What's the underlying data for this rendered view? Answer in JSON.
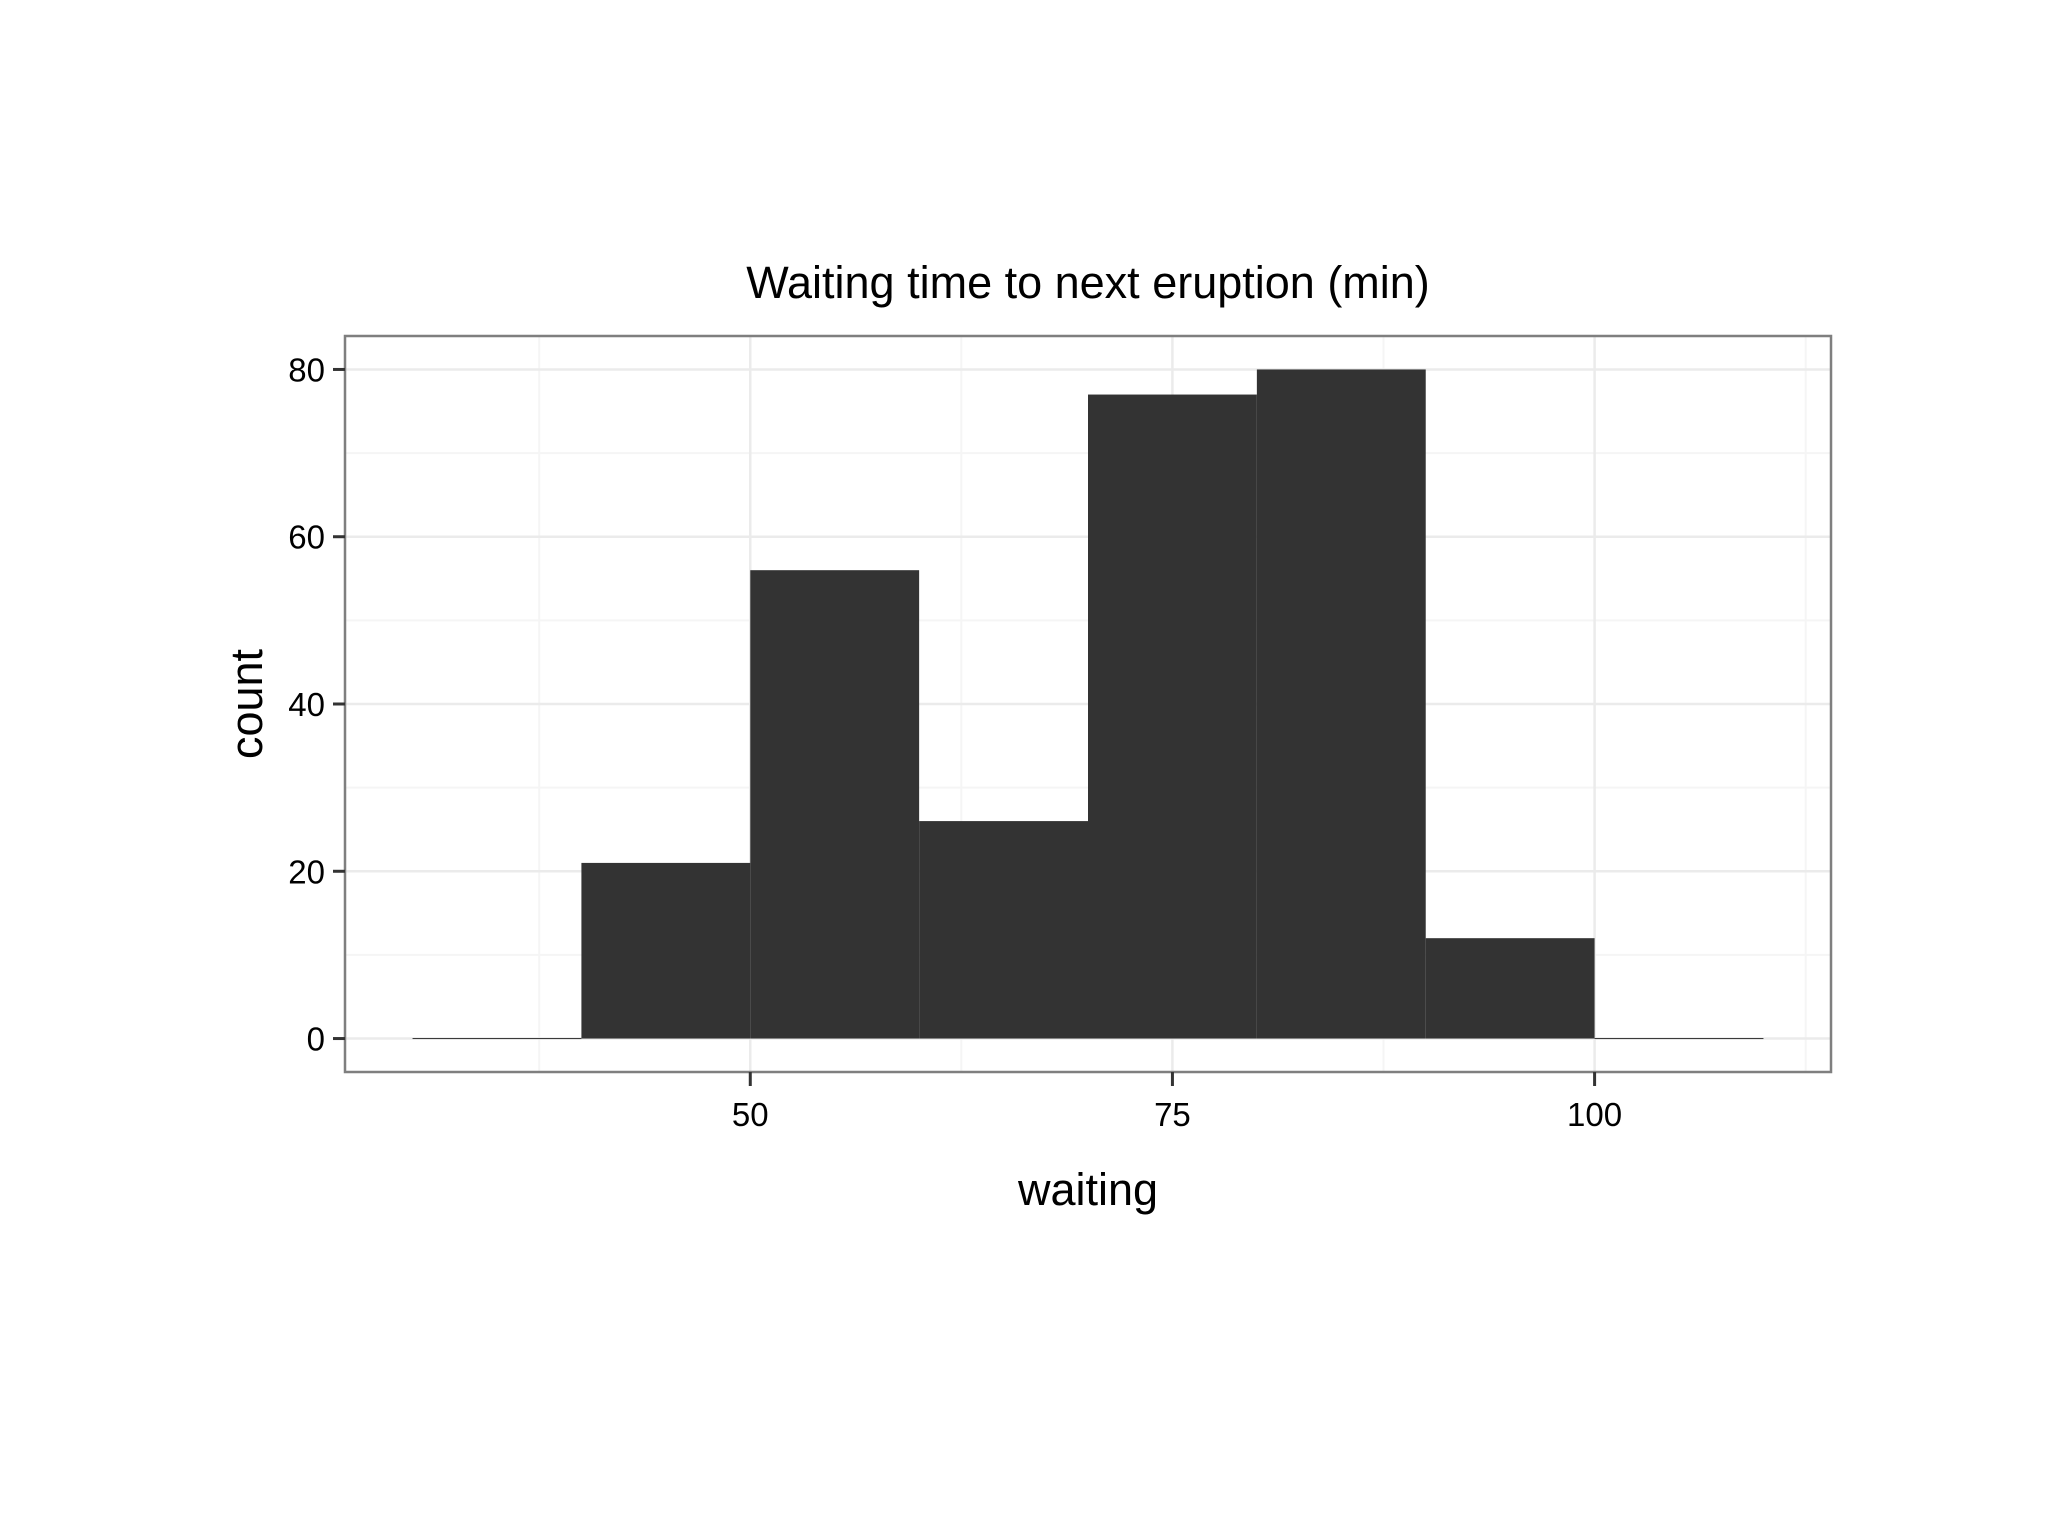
{
  "chart_data": {
    "type": "bar",
    "title": "Waiting time to next eruption (min)",
    "xlabel": "waiting",
    "ylabel": "count",
    "bins": [
      {
        "start": 30,
        "end": 40,
        "count": 0
      },
      {
        "start": 40,
        "end": 50,
        "count": 21
      },
      {
        "start": 50,
        "end": 60,
        "count": 56
      },
      {
        "start": 60,
        "end": 70,
        "count": 26
      },
      {
        "start": 70,
        "end": 80,
        "count": 77
      },
      {
        "start": 80,
        "end": 90,
        "count": 80
      },
      {
        "start": 90,
        "end": 100,
        "count": 12
      },
      {
        "start": 100,
        "end": 110,
        "count": 0
      }
    ],
    "xlim": [
      26,
      114
    ],
    "ylim": [
      -4,
      84
    ],
    "x_ticks": [
      {
        "value": 50,
        "label": "50"
      },
      {
        "value": 75,
        "label": "75"
      },
      {
        "value": 100,
        "label": "100"
      }
    ],
    "y_ticks": [
      {
        "value": 0,
        "label": "0"
      },
      {
        "value": 20,
        "label": "20"
      },
      {
        "value": 40,
        "label": "40"
      },
      {
        "value": 60,
        "label": "60"
      },
      {
        "value": 80,
        "label": "80"
      }
    ],
    "x_minor_grid": [
      37.5,
      62.5,
      87.5,
      112.5
    ],
    "y_minor_grid": [
      10,
      30,
      50,
      70
    ],
    "grid": true,
    "legend": "none",
    "colors": {
      "bar": "#333333",
      "panel_border": "#7f7f7f",
      "grid_major": "#ebebeb",
      "grid_minor": "#f5f5f5",
      "tick": "#333333"
    }
  }
}
